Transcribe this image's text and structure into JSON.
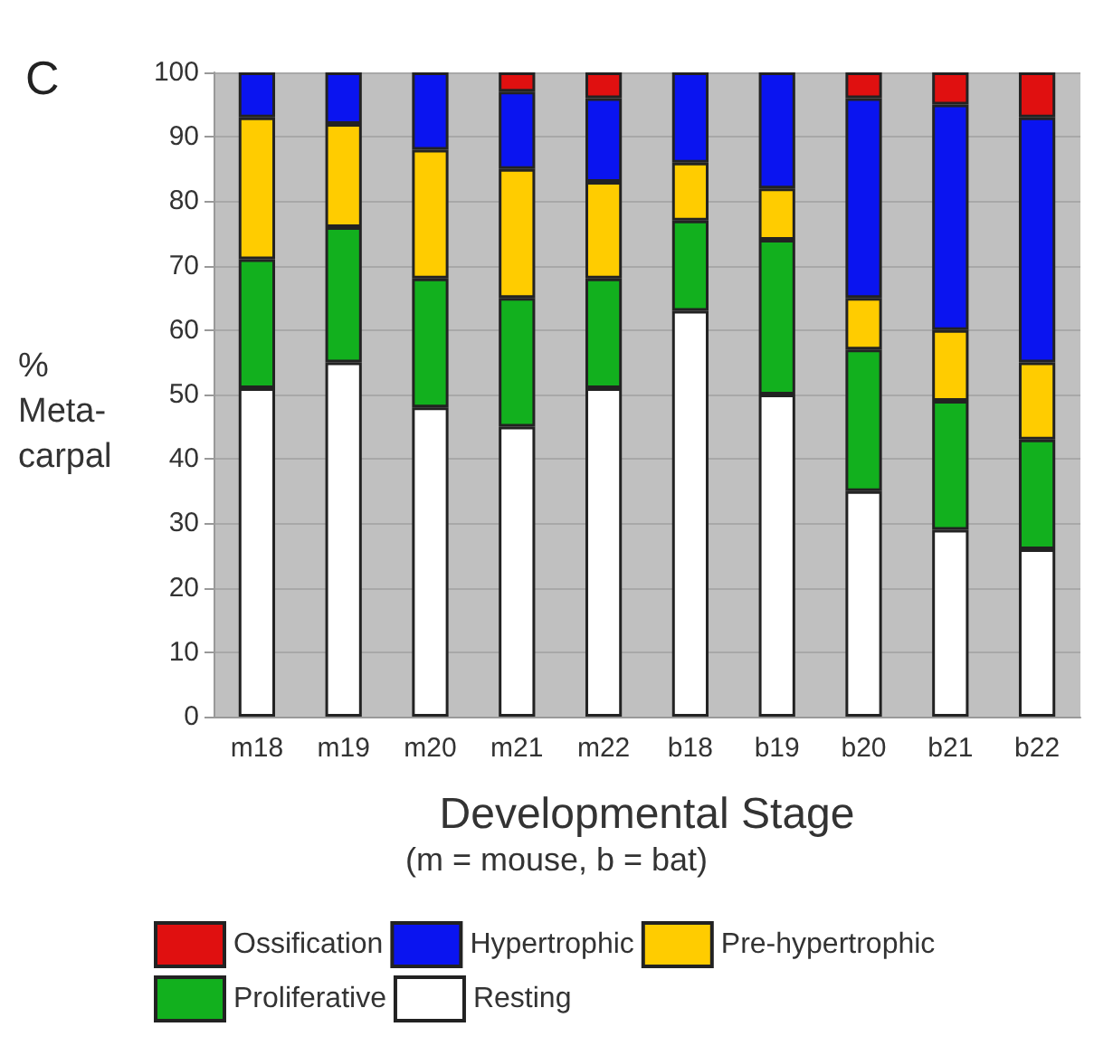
{
  "chart_data": {
    "type": "bar",
    "stacked": true,
    "xlabel": "Developmental Stage",
    "ylabel": "%\nMeta-\ncarpal",
    "annotations": [
      "C",
      "(m = mouse, b = bat)"
    ],
    "categories": [
      "m18",
      "m19",
      "m20",
      "m21",
      "m22",
      "b18",
      "b19",
      "b20",
      "b21",
      "b22"
    ],
    "series": [
      {
        "name": "Resting",
        "color": "#ffffff",
        "values": [
          51,
          55,
          48,
          45,
          51,
          63,
          50,
          35,
          29,
          26
        ]
      },
      {
        "name": "Proliferative",
        "color": "#12b01e",
        "values": [
          20,
          21,
          20,
          20,
          17,
          14,
          24,
          22,
          20,
          17
        ]
      },
      {
        "name": "Pre-hypertrophic",
        "color": "#ffcc00",
        "values": [
          22,
          16,
          20,
          20,
          15,
          9,
          8,
          8,
          11,
          12
        ]
      },
      {
        "name": "Hypertrophic",
        "color": "#0a14f0",
        "values": [
          7,
          8,
          12,
          12,
          13,
          14,
          18,
          31,
          35,
          38
        ]
      },
      {
        "name": "Ossification",
        "color": "#e01010",
        "values": [
          0,
          0,
          0,
          3,
          4,
          0,
          0,
          4,
          5,
          7
        ]
      }
    ],
    "ylim": [
      0,
      100
    ],
    "yticks": [
      0,
      10,
      20,
      30,
      40,
      50,
      60,
      70,
      80,
      90,
      100
    ],
    "grid": "y",
    "legend": "bottom"
  }
}
